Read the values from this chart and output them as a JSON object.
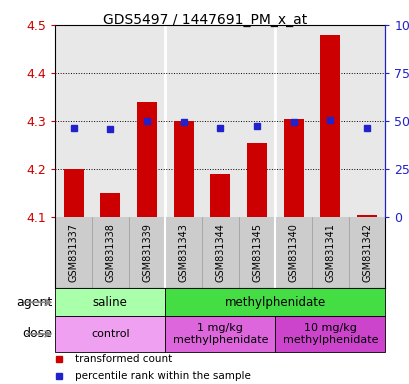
{
  "title": "GDS5497 / 1447691_PM_x_at",
  "samples": [
    "GSM831337",
    "GSM831338",
    "GSM831339",
    "GSM831343",
    "GSM831344",
    "GSM831345",
    "GSM831340",
    "GSM831341",
    "GSM831342"
  ],
  "bar_values": [
    4.2,
    4.15,
    4.34,
    4.3,
    4.19,
    4.255,
    4.305,
    4.48,
    4.105
  ],
  "blue_values": [
    4.286,
    4.284,
    4.3,
    4.298,
    4.286,
    4.291,
    4.299,
    4.302,
    4.286
  ],
  "ylim": [
    4.1,
    4.5
  ],
  "yticks": [
    4.1,
    4.2,
    4.3,
    4.4,
    4.5
  ],
  "right_yticks_labels": [
    "0",
    "25",
    "50",
    "75",
    "100%"
  ],
  "right_ytick_vals": [
    4.1,
    4.2,
    4.3,
    4.4,
    4.5
  ],
  "bar_color": "#cc0000",
  "blue_color": "#2222cc",
  "bar_baseline": 4.1,
  "agent_groups": [
    {
      "label": "saline",
      "start": 0,
      "end": 3,
      "color": "#aaffaa"
    },
    {
      "label": "methylphenidate",
      "start": 3,
      "end": 9,
      "color": "#44dd44"
    }
  ],
  "dose_groups": [
    {
      "label": "control",
      "start": 0,
      "end": 3,
      "color": "#f0a0f0"
    },
    {
      "label": "1 mg/kg\nmethylphenidate",
      "start": 3,
      "end": 6,
      "color": "#dd66dd"
    },
    {
      "label": "10 mg/kg\nmethylphenidate",
      "start": 6,
      "end": 9,
      "color": "#cc44cc"
    }
  ],
  "legend_items": [
    {
      "color": "#cc0000",
      "label": "transformed count"
    },
    {
      "color": "#2222cc",
      "label": "percentile rank within the sample"
    }
  ],
  "plot_bg_color": "#e8e8e8",
  "sample_bg_color": "#cccccc",
  "grid_color": "#000000",
  "right_axis_color": "#2222cc",
  "left_axis_color": "#cc0000",
  "group_dividers": [
    2.5,
    5.5
  ],
  "bar_width": 0.55
}
